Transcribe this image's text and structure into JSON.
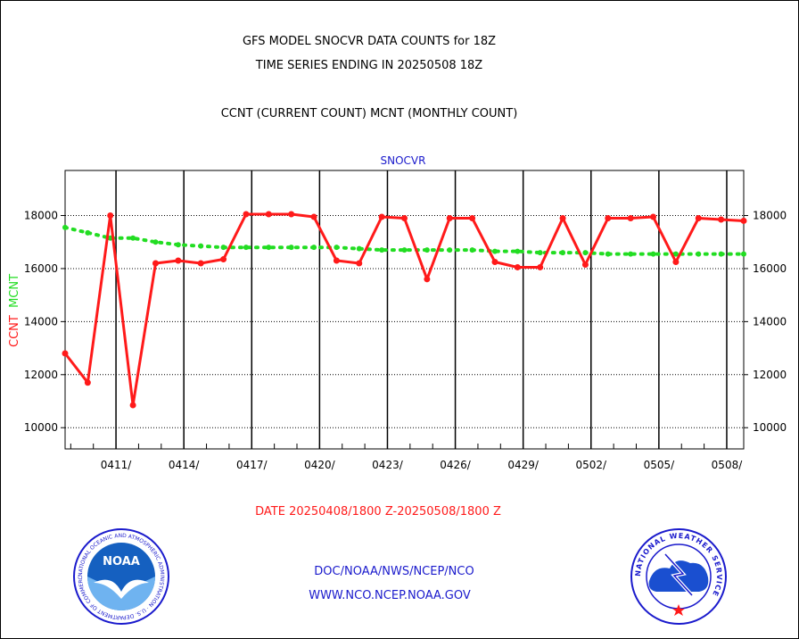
{
  "header": {
    "title1": "GFS MODEL SNOCVR DATA COUNTS for 18Z",
    "title2": "TIME SERIES ENDING IN 20250508 18Z",
    "subtitle": "CCNT (CURRENT COUNT) MCNT (MONTHLY COUNT)"
  },
  "footer": {
    "date_range": "DATE 20250408/1800 Z-20250508/1800 Z",
    "org_path": "DOC/NOAA/NWS/NCEP/NCO",
    "website": "WWW.NCO.NCEP.NOAA.GOV"
  },
  "logos": {
    "noaa_text": "NOAA",
    "noaa_ring": "NATIONAL OCEANIC AND ATMOSPHERIC ADMINISTRATION · U.S. DEPARTMENT OF COMMERCE",
    "nws_ring": "NATIONAL WEATHER SERVICE"
  },
  "colors": {
    "ccnt": "#ff1a1a",
    "mcnt": "#22dd22",
    "text_blue": "#1a1acc",
    "text_red": "#ff1a1a"
  },
  "chart_data": {
    "type": "line",
    "title": "SNOCVR",
    "ylabel_ccnt": "CCNT",
    "ylabel_mcnt": "MCNT",
    "ylim": [
      9200,
      19700
    ],
    "yticks": [
      10000,
      12000,
      14000,
      16000,
      18000
    ],
    "grid": true,
    "x_start": "2025-04-08 18Z",
    "x_end": "2025-05-08 18Z",
    "x_tick_labels": [
      "0411/",
      "0414/",
      "0417/",
      "0420/",
      "0423/",
      "0426/",
      "0429/",
      "0502/",
      "0505/",
      "0508/"
    ],
    "x": [
      "04/08 18Z",
      "04/09 18Z",
      "04/10 18Z",
      "04/11 18Z",
      "04/12 18Z",
      "04/13 18Z",
      "04/14 18Z",
      "04/15 18Z",
      "04/16 18Z",
      "04/17 18Z",
      "04/18 18Z",
      "04/19 18Z",
      "04/20 18Z",
      "04/21 18Z",
      "04/22 18Z",
      "04/23 18Z",
      "04/24 18Z",
      "04/25 18Z",
      "04/26 18Z",
      "04/27 18Z",
      "04/28 18Z",
      "04/29 18Z",
      "04/30 18Z",
      "05/01 18Z",
      "05/02 18Z",
      "05/03 18Z",
      "05/04 18Z",
      "05/05 18Z",
      "05/06 18Z",
      "05/07 18Z",
      "05/08 18Z"
    ],
    "series": [
      {
        "name": "CCNT",
        "values": [
          12800,
          11700,
          18000,
          10850,
          16200,
          16300,
          16200,
          16350,
          18050,
          18050,
          18050,
          17950,
          16300,
          16200,
          17950,
          17900,
          15600,
          17900,
          17900,
          16250,
          16050,
          16050,
          17900,
          16150,
          17900,
          17900,
          17950,
          16250,
          17900,
          17850,
          17800
        ]
      },
      {
        "name": "MCNT",
        "values": [
          17550,
          17350,
          17150,
          17150,
          17000,
          16900,
          16850,
          16800,
          16800,
          16800,
          16800,
          16800,
          16800,
          16750,
          16700,
          16700,
          16700,
          16700,
          16700,
          16650,
          16650,
          16600,
          16600,
          16600,
          16550,
          16550,
          16550,
          16550,
          16550,
          16550,
          16550
        ]
      }
    ]
  }
}
